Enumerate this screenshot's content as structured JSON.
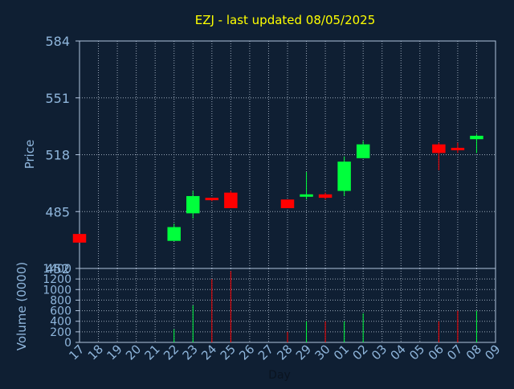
{
  "chart_data": {
    "type": "candlestick",
    "title": "EZJ - last updated 08/05/2025",
    "price_panel": {
      "ylabel": "Price",
      "yticks": [
        452,
        485,
        518,
        551,
        584
      ],
      "ylim": [
        452,
        584
      ]
    },
    "volume_panel": {
      "ylabel": "Volume (0000)",
      "yticks": [
        0,
        200,
        400,
        600,
        800,
        1000,
        1200,
        1400
      ],
      "ylim": [
        0,
        1400
      ]
    },
    "xlabel": "Day",
    "x_tick_labels": [
      "17",
      "18",
      "19",
      "20",
      "21",
      "22",
      "23",
      "24",
      "25",
      "26",
      "27",
      "28",
      "29",
      "30",
      "01",
      "02",
      "03",
      "04",
      "05",
      "06",
      "07",
      "08",
      "09"
    ],
    "candles": [
      {
        "day": "17",
        "open": 472,
        "high": 472,
        "low": 467,
        "close": 467,
        "volume": 0
      },
      {
        "day": "22",
        "open": 468,
        "high": 478,
        "low": 468,
        "close": 476,
        "volume": 250
      },
      {
        "day": "23",
        "open": 484,
        "high": 497,
        "low": 481,
        "close": 494,
        "volume": 700
      },
      {
        "day": "24",
        "open": 493,
        "high": 493,
        "low": 491,
        "close": 492,
        "volume": 1200
      },
      {
        "day": "25",
        "open": 496,
        "high": 497,
        "low": 487,
        "close": 487,
        "volume": 1350
      },
      {
        "day": "28",
        "open": 492,
        "high": 492,
        "low": 487,
        "close": 487,
        "volume": 200
      },
      {
        "day": "29",
        "open": 494,
        "high": 508,
        "low": 492,
        "close": 495,
        "volume": 400
      },
      {
        "day": "30",
        "open": 495,
        "high": 496,
        "low": 492,
        "close": 493,
        "volume": 400
      },
      {
        "day": "01",
        "open": 497,
        "high": 517,
        "low": 494,
        "close": 514,
        "volume": 400
      },
      {
        "day": "02",
        "open": 516,
        "high": 526,
        "low": 516,
        "close": 524,
        "volume": 550
      },
      {
        "day": "06",
        "open": 524,
        "high": 525,
        "low": 509,
        "close": 519,
        "volume": 400
      },
      {
        "day": "07",
        "open": 522,
        "high": 525,
        "low": 519,
        "close": 521,
        "volume": 600
      },
      {
        "day": "08",
        "open": 527,
        "high": 530,
        "low": 519,
        "close": 529,
        "volume": 600
      }
    ],
    "colors": {
      "background": "#0f1f33",
      "up": "#00ff3c",
      "down": "#ff0000",
      "title": "#ffff00",
      "axis_text": "#8fb6dc",
      "frame": "#b0c4de",
      "grid": "#9aa7b8"
    },
    "grid": true
  }
}
